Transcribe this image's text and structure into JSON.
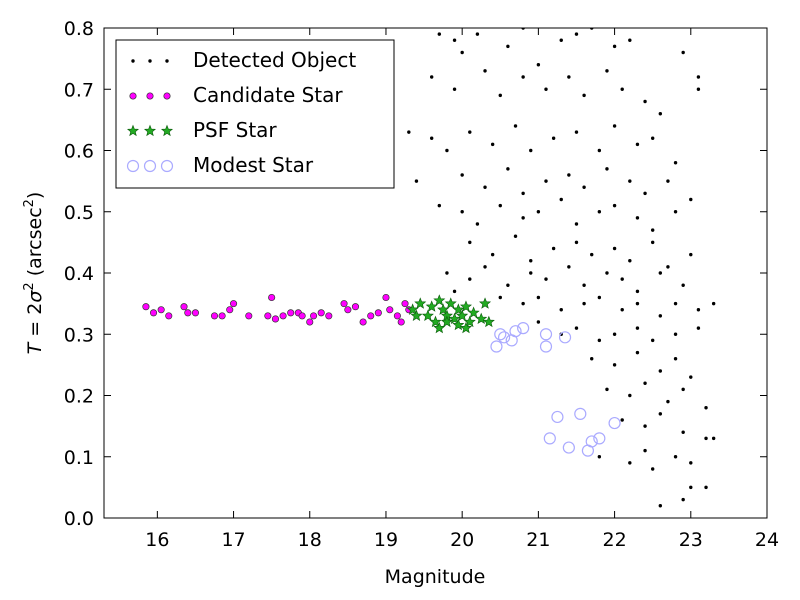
{
  "chart_data": {
    "type": "scatter",
    "xlabel": "Magnitude",
    "ylabel_parts": {
      "pre": "T",
      "eq": " = 2",
      "sigma": "σ",
      "sup2": "2",
      "unit": " (arcsec",
      "unit_sup": "2",
      "close": ")"
    },
    "xlim": [
      15.3,
      24.0
    ],
    "ylim": [
      0.0,
      0.8
    ],
    "x_ticks": [
      16,
      17,
      18,
      19,
      20,
      21,
      22,
      23,
      24
    ],
    "x_tick_labels": [
      "16",
      "17",
      "18",
      "19",
      "20",
      "21",
      "22",
      "23",
      "24"
    ],
    "y_ticks": [
      0.0,
      0.1,
      0.2,
      0.3,
      0.4,
      0.5,
      0.6,
      0.7,
      0.8
    ],
    "y_tick_labels": [
      "0.0",
      "0.1",
      "0.2",
      "0.3",
      "0.4",
      "0.5",
      "0.6",
      "0.7",
      "0.8"
    ],
    "grid": false,
    "legend_position": "top-left",
    "series": [
      {
        "name": "Detected Object",
        "marker": "dot",
        "color": "#000000",
        "points": [
          [
            19.7,
            0.79
          ],
          [
            19.9,
            0.78
          ],
          [
            20.0,
            0.76
          ],
          [
            20.2,
            0.79
          ],
          [
            20.6,
            0.77
          ],
          [
            20.8,
            0.8
          ],
          [
            21.0,
            0.74
          ],
          [
            21.3,
            0.78
          ],
          [
            21.5,
            0.79
          ],
          [
            21.7,
            0.8
          ],
          [
            22.0,
            0.77
          ],
          [
            22.2,
            0.78
          ],
          [
            19.6,
            0.72
          ],
          [
            19.9,
            0.7
          ],
          [
            20.3,
            0.73
          ],
          [
            20.5,
            0.69
          ],
          [
            20.8,
            0.72
          ],
          [
            21.1,
            0.7
          ],
          [
            21.4,
            0.72
          ],
          [
            21.6,
            0.69
          ],
          [
            21.9,
            0.73
          ],
          [
            22.1,
            0.7
          ],
          [
            22.4,
            0.68
          ],
          [
            22.6,
            0.66
          ],
          [
            22.9,
            0.76
          ],
          [
            23.1,
            0.72
          ],
          [
            23.1,
            0.7
          ],
          [
            19.3,
            0.63
          ],
          [
            19.6,
            0.62
          ],
          [
            19.8,
            0.6
          ],
          [
            20.1,
            0.63
          ],
          [
            20.4,
            0.61
          ],
          [
            20.7,
            0.64
          ],
          [
            20.9,
            0.6
          ],
          [
            21.2,
            0.62
          ],
          [
            21.5,
            0.63
          ],
          [
            21.8,
            0.6
          ],
          [
            22.0,
            0.64
          ],
          [
            22.3,
            0.61
          ],
          [
            22.5,
            0.62
          ],
          [
            22.8,
            0.58
          ],
          [
            20.0,
            0.56
          ],
          [
            20.3,
            0.54
          ],
          [
            20.6,
            0.57
          ],
          [
            20.8,
            0.53
          ],
          [
            21.1,
            0.55
          ],
          [
            21.4,
            0.56
          ],
          [
            21.6,
            0.54
          ],
          [
            21.9,
            0.57
          ],
          [
            22.2,
            0.55
          ],
          [
            22.4,
            0.53
          ],
          [
            22.7,
            0.55
          ],
          [
            23.0,
            0.52
          ],
          [
            19.4,
            0.55
          ],
          [
            19.7,
            0.51
          ],
          [
            20.0,
            0.5
          ],
          [
            20.2,
            0.48
          ],
          [
            20.5,
            0.51
          ],
          [
            20.8,
            0.49
          ],
          [
            21.0,
            0.5
          ],
          [
            21.3,
            0.52
          ],
          [
            21.5,
            0.48
          ],
          [
            21.8,
            0.5
          ],
          [
            22.0,
            0.51
          ],
          [
            22.3,
            0.49
          ],
          [
            22.5,
            0.47
          ],
          [
            22.8,
            0.5
          ],
          [
            20.1,
            0.45
          ],
          [
            20.4,
            0.43
          ],
          [
            20.7,
            0.46
          ],
          [
            20.9,
            0.42
          ],
          [
            21.2,
            0.44
          ],
          [
            21.5,
            0.45
          ],
          [
            21.7,
            0.43
          ],
          [
            22.0,
            0.44
          ],
          [
            22.2,
            0.42
          ],
          [
            22.5,
            0.45
          ],
          [
            22.7,
            0.41
          ],
          [
            23.0,
            0.43
          ],
          [
            19.8,
            0.4
          ],
          [
            20.1,
            0.39
          ],
          [
            20.3,
            0.41
          ],
          [
            20.6,
            0.38
          ],
          [
            20.9,
            0.4
          ],
          [
            21.1,
            0.39
          ],
          [
            21.4,
            0.41
          ],
          [
            21.6,
            0.38
          ],
          [
            21.9,
            0.4
          ],
          [
            22.1,
            0.39
          ],
          [
            22.3,
            0.37
          ],
          [
            22.6,
            0.4
          ],
          [
            22.9,
            0.38
          ],
          [
            19.9,
            0.37
          ],
          [
            20.5,
            0.36
          ],
          [
            20.8,
            0.35
          ],
          [
            21.0,
            0.36
          ],
          [
            21.3,
            0.34
          ],
          [
            21.6,
            0.35
          ],
          [
            21.8,
            0.36
          ],
          [
            22.1,
            0.34
          ],
          [
            22.3,
            0.35
          ],
          [
            22.6,
            0.33
          ],
          [
            22.8,
            0.35
          ],
          [
            23.1,
            0.34
          ],
          [
            23.3,
            0.35
          ],
          [
            21.0,
            0.32
          ],
          [
            21.3,
            0.3
          ],
          [
            21.5,
            0.31
          ],
          [
            21.8,
            0.29
          ],
          [
            22.0,
            0.3
          ],
          [
            22.3,
            0.31
          ],
          [
            22.5,
            0.29
          ],
          [
            22.8,
            0.3
          ],
          [
            23.1,
            0.31
          ],
          [
            21.7,
            0.26
          ],
          [
            22.0,
            0.25
          ],
          [
            22.3,
            0.27
          ],
          [
            22.6,
            0.24
          ],
          [
            22.8,
            0.26
          ],
          [
            23.0,
            0.23
          ],
          [
            21.9,
            0.21
          ],
          [
            22.2,
            0.2
          ],
          [
            22.4,
            0.22
          ],
          [
            22.7,
            0.19
          ],
          [
            22.9,
            0.21
          ],
          [
            23.2,
            0.18
          ],
          [
            22.1,
            0.16
          ],
          [
            22.4,
            0.15
          ],
          [
            22.6,
            0.17
          ],
          [
            22.9,
            0.14
          ],
          [
            23.2,
            0.13
          ],
          [
            23.3,
            0.13
          ],
          [
            21.8,
            0.1
          ],
          [
            22.2,
            0.09
          ],
          [
            22.5,
            0.08
          ],
          [
            22.8,
            0.1
          ],
          [
            23.0,
            0.09
          ],
          [
            23.2,
            0.05
          ],
          [
            22.6,
            0.02
          ],
          [
            22.9,
            0.03
          ],
          [
            23.0,
            0.05
          ],
          [
            22.4,
            0.11
          ]
        ]
      },
      {
        "name": "Candidate Star",
        "marker": "circle",
        "color": "#ff00ff",
        "points": [
          [
            15.85,
            0.345
          ],
          [
            15.95,
            0.335
          ],
          [
            16.05,
            0.34
          ],
          [
            16.15,
            0.33
          ],
          [
            16.35,
            0.345
          ],
          [
            16.4,
            0.335
          ],
          [
            16.5,
            0.335
          ],
          [
            16.75,
            0.33
          ],
          [
            16.85,
            0.33
          ],
          [
            16.95,
            0.34
          ],
          [
            17.0,
            0.35
          ],
          [
            17.2,
            0.33
          ],
          [
            17.45,
            0.33
          ],
          [
            17.5,
            0.36
          ],
          [
            17.55,
            0.325
          ],
          [
            17.65,
            0.33
          ],
          [
            17.75,
            0.335
          ],
          [
            17.85,
            0.335
          ],
          [
            17.9,
            0.33
          ],
          [
            18.0,
            0.32
          ],
          [
            18.05,
            0.33
          ],
          [
            18.15,
            0.335
          ],
          [
            18.25,
            0.33
          ],
          [
            18.45,
            0.35
          ],
          [
            18.5,
            0.34
          ],
          [
            18.6,
            0.345
          ],
          [
            18.7,
            0.32
          ],
          [
            18.8,
            0.33
          ],
          [
            18.9,
            0.335
          ],
          [
            19.0,
            0.36
          ],
          [
            19.05,
            0.34
          ],
          [
            19.15,
            0.33
          ],
          [
            19.2,
            0.32
          ],
          [
            19.25,
            0.35
          ],
          [
            19.3,
            0.34
          ]
        ]
      },
      {
        "name": "PSF Star",
        "marker": "star",
        "color": "#22aa22",
        "points": [
          [
            19.35,
            0.34
          ],
          [
            19.4,
            0.33
          ],
          [
            19.45,
            0.35
          ],
          [
            19.55,
            0.33
          ],
          [
            19.6,
            0.345
          ],
          [
            19.65,
            0.32
          ],
          [
            19.7,
            0.355
          ],
          [
            19.75,
            0.34
          ],
          [
            19.8,
            0.33
          ],
          [
            19.85,
            0.35
          ],
          [
            19.9,
            0.325
          ],
          [
            19.95,
            0.34
          ],
          [
            20.0,
            0.33
          ],
          [
            20.05,
            0.345
          ],
          [
            20.1,
            0.32
          ],
          [
            20.15,
            0.335
          ],
          [
            20.25,
            0.325
          ],
          [
            20.3,
            0.35
          ],
          [
            20.35,
            0.32
          ],
          [
            19.7,
            0.31
          ],
          [
            19.8,
            0.32
          ],
          [
            19.95,
            0.315
          ],
          [
            20.05,
            0.31
          ]
        ]
      },
      {
        "name": "Modest Star",
        "marker": "open-circle",
        "color": "#aaaaff",
        "points": [
          [
            20.45,
            0.28
          ],
          [
            20.5,
            0.3
          ],
          [
            20.55,
            0.295
          ],
          [
            20.65,
            0.29
          ],
          [
            20.7,
            0.305
          ],
          [
            20.8,
            0.31
          ],
          [
            21.1,
            0.28
          ],
          [
            21.1,
            0.3
          ],
          [
            21.35,
            0.295
          ],
          [
            21.15,
            0.13
          ],
          [
            21.25,
            0.165
          ],
          [
            21.4,
            0.115
          ],
          [
            21.55,
            0.17
          ],
          [
            21.65,
            0.11
          ],
          [
            21.7,
            0.125
          ],
          [
            21.8,
            0.13
          ],
          [
            22.0,
            0.155
          ]
        ]
      }
    ]
  }
}
